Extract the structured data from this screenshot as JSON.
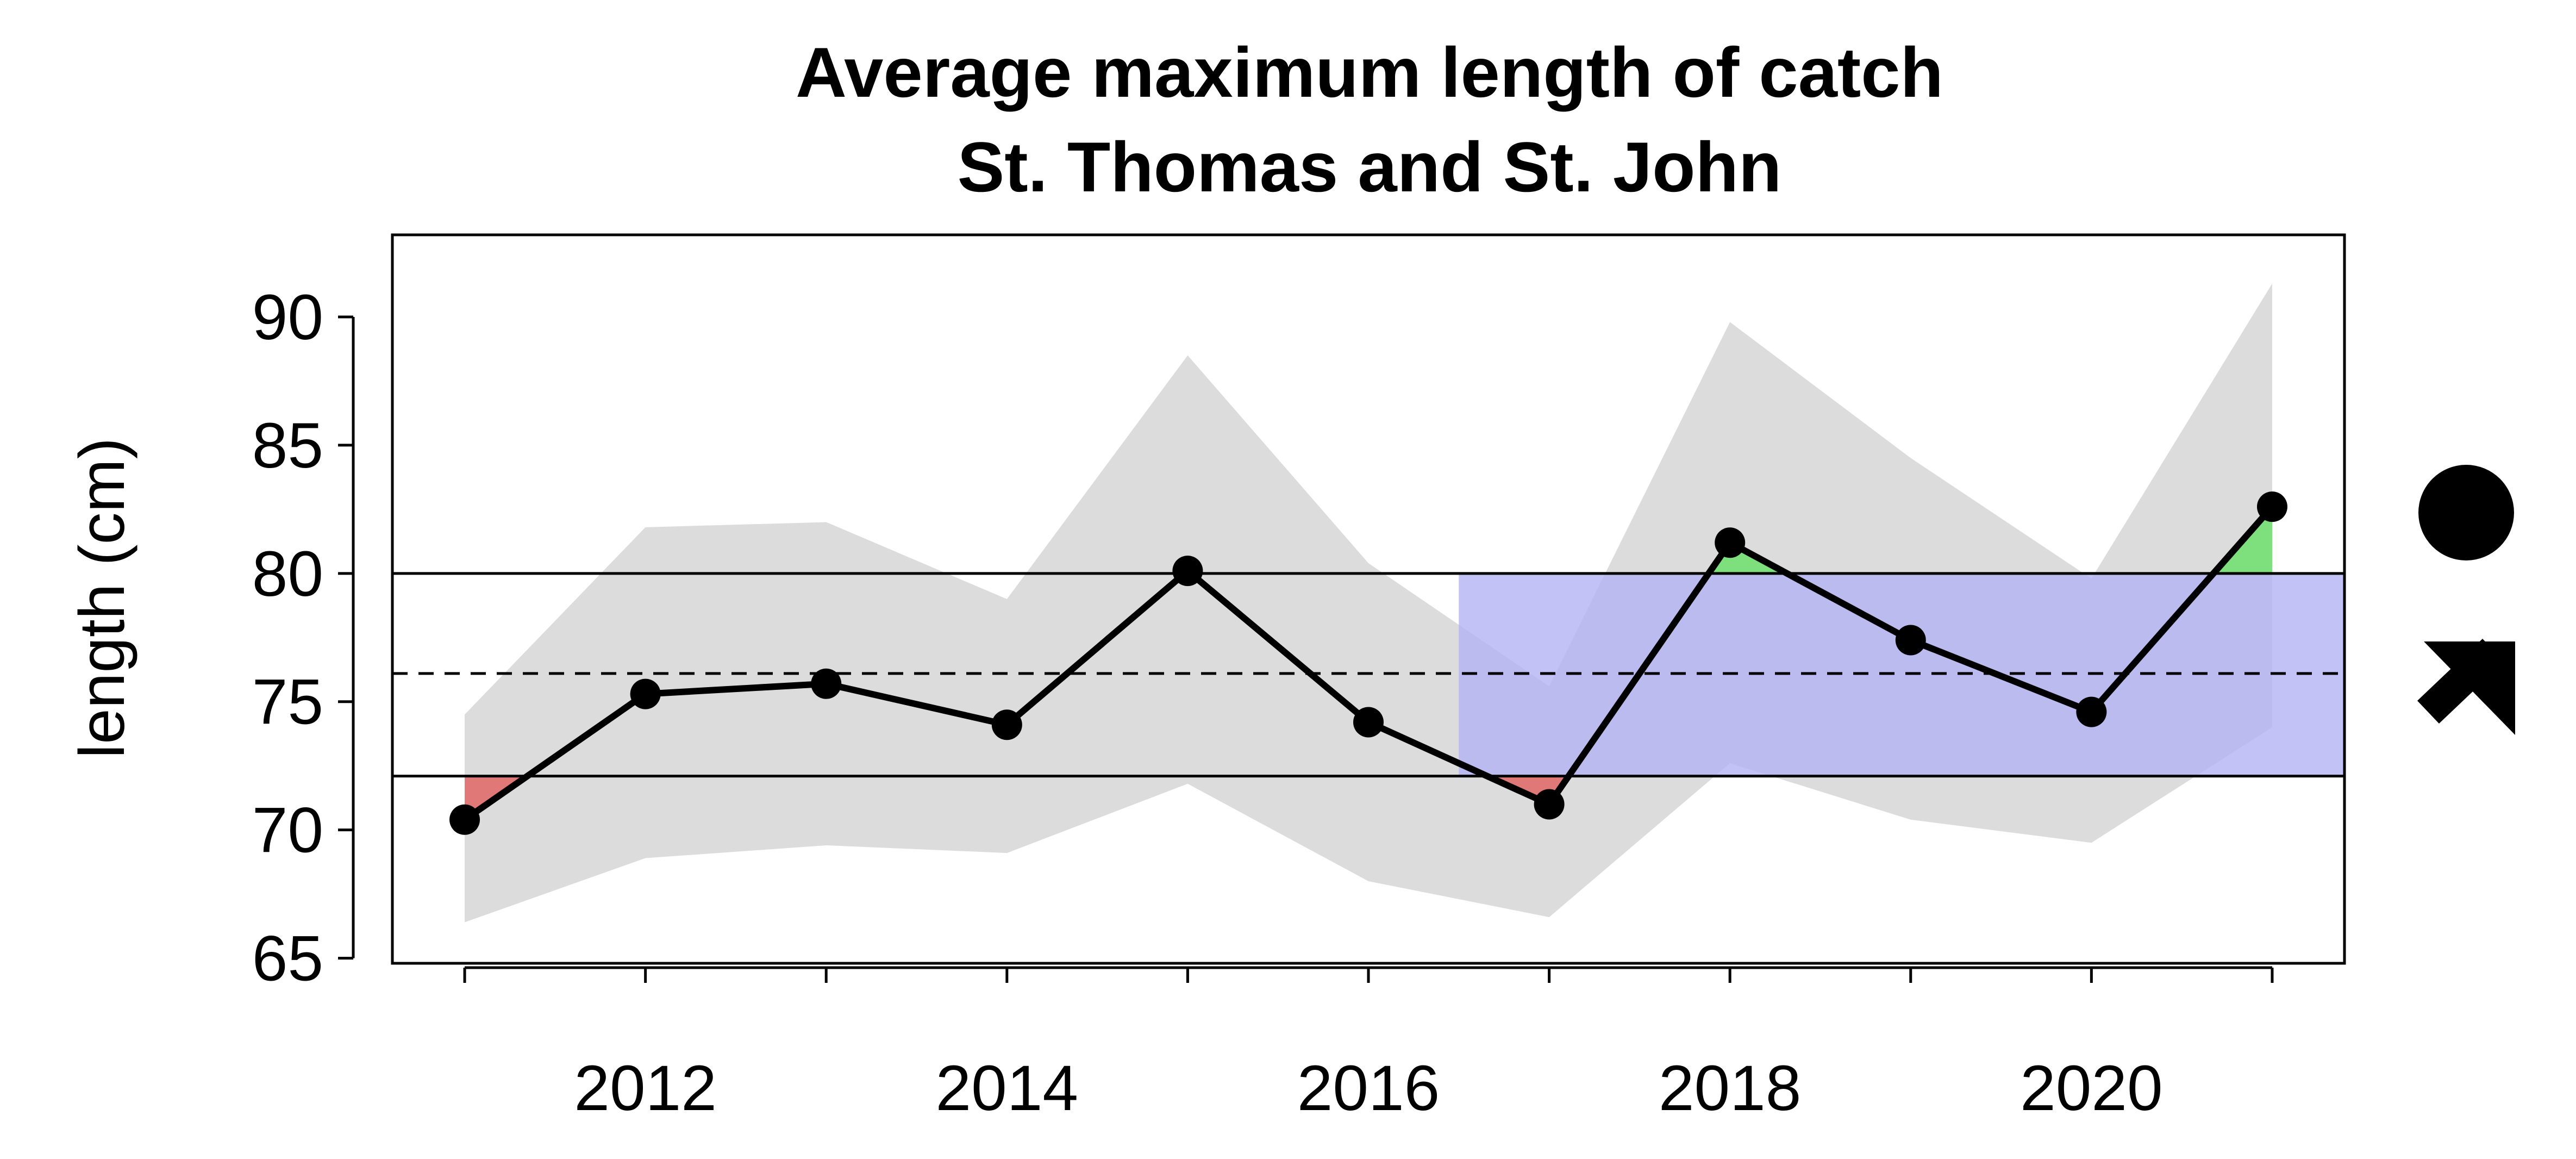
{
  "chart_data": {
    "type": "line",
    "title": "Average maximum length of catch",
    "subtitle": "St. Thomas and St. John",
    "xlabel": "",
    "ylabel": "length (cm)",
    "x": [
      2011,
      2012,
      2013,
      2014,
      2015,
      2016,
      2017,
      2018,
      2019,
      2020,
      2021
    ],
    "xlim": [
      2010.6,
      2021.4
    ],
    "ylim": [
      64.8,
      93.2
    ],
    "x_ticks": [
      2011,
      2012,
      2013,
      2014,
      2015,
      2016,
      2017,
      2018,
      2019,
      2020,
      2021
    ],
    "x_tick_labels": [
      "2012",
      "2014",
      "2016",
      "2018",
      "2020"
    ],
    "y_ticks": [
      65,
      70,
      75,
      80,
      85,
      90
    ],
    "y_tick_labels": [
      "65",
      "70",
      "75",
      "80",
      "85",
      "90"
    ],
    "series": [
      {
        "values": [
          70.4,
          75.3,
          75.7,
          74.1,
          80.1,
          74.2,
          71.0,
          81.2,
          77.4,
          74.6,
          82.6
        ]
      }
    ],
    "confidence_band": {
      "upper": [
        74.5,
        81.8,
        82.0,
        79.0,
        88.5,
        80.4,
        75.6,
        89.8,
        84.5,
        79.8,
        91.3
      ],
      "lower": [
        66.4,
        68.9,
        69.4,
        69.1,
        71.8,
        68.0,
        66.6,
        72.6,
        70.4,
        69.5,
        74.0
      ]
    },
    "mean_line": 76.1,
    "upper_sd_line": 80.0,
    "lower_sd_line": 72.1,
    "highlight_window": {
      "x_start": 2016.5,
      "x_end": 2021.5
    },
    "grid": false,
    "legend": "none",
    "indicators": {
      "mean_status": "filled-circle-icon",
      "trend": "arrow-up-right-icon"
    },
    "colors": {
      "band": "#dcdcdc",
      "window": "#b3b3f5",
      "above": "#7de07d",
      "below": "#e07878",
      "line": "#000000"
    }
  }
}
